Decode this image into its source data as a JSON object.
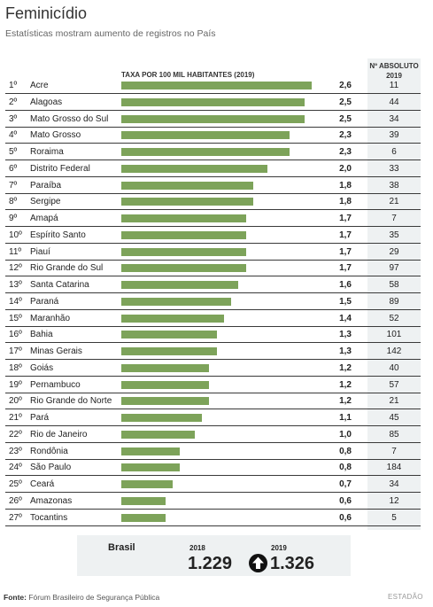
{
  "header": {
    "title": "Feminicídio",
    "subtitle": "Estatísticas mostram aumento de registros no País"
  },
  "columns": {
    "rate_header": "TAXA POR 100 MIL HABITANTES (2019)",
    "abs_header_line1": "Nº ABSOLUTO",
    "abs_header_line2": "2019"
  },
  "colors": {
    "bar": "#7da35a",
    "shade": "#eef1f2"
  },
  "chart_data": {
    "type": "bar",
    "orientation": "horizontal",
    "title": "Feminicídio",
    "subtitle": "Estatísticas mostram aumento de registros no País",
    "value_label": "TAXA POR 100 MIL HABITANTES (2019)",
    "xlim": [
      0,
      2.6
    ],
    "rows": [
      {
        "rank": "1º",
        "state": "Acre",
        "rate": "2,6",
        "rate_value": 2.6,
        "absolute": "11"
      },
      {
        "rank": "2º",
        "state": "Alagoas",
        "rate": "2,5",
        "rate_value": 2.5,
        "absolute": "44"
      },
      {
        "rank": "3º",
        "state": "Mato Grosso do Sul",
        "rate": "2,5",
        "rate_value": 2.5,
        "absolute": "34"
      },
      {
        "rank": "4º",
        "state": "Mato Grosso",
        "rate": "2,3",
        "rate_value": 2.3,
        "absolute": "39"
      },
      {
        "rank": "5º",
        "state": "Roraima",
        "rate": "2,3",
        "rate_value": 2.3,
        "absolute": "6"
      },
      {
        "rank": "6º",
        "state": "Distrito Federal",
        "rate": "2,0",
        "rate_value": 2.0,
        "absolute": "33"
      },
      {
        "rank": "7º",
        "state": "Paraíba",
        "rate": "1,8",
        "rate_value": 1.8,
        "absolute": "38"
      },
      {
        "rank": "8º",
        "state": "Sergipe",
        "rate": "1,8",
        "rate_value": 1.8,
        "absolute": "21"
      },
      {
        "rank": "9º",
        "state": "Amapá",
        "rate": "1,7",
        "rate_value": 1.7,
        "absolute": "7"
      },
      {
        "rank": "10º",
        "state": "Espírito Santo",
        "rate": "1,7",
        "rate_value": 1.7,
        "absolute": "35"
      },
      {
        "rank": "11º",
        "state": "Piauí",
        "rate": "1,7",
        "rate_value": 1.7,
        "absolute": "29"
      },
      {
        "rank": "12º",
        "state": "Rio Grande do Sul",
        "rate": "1,7",
        "rate_value": 1.7,
        "absolute": "97"
      },
      {
        "rank": "13º",
        "state": "Santa Catarina",
        "rate": "1,6",
        "rate_value": 1.6,
        "absolute": "58"
      },
      {
        "rank": "14º",
        "state": "Paraná",
        "rate": "1,5",
        "rate_value": 1.5,
        "absolute": "89"
      },
      {
        "rank": "15º",
        "state": "Maranhão",
        "rate": "1,4",
        "rate_value": 1.4,
        "absolute": "52"
      },
      {
        "rank": "16º",
        "state": "Bahia",
        "rate": "1,3",
        "rate_value": 1.3,
        "absolute": "101"
      },
      {
        "rank": "17º",
        "state": "Minas Gerais",
        "rate": "1,3",
        "rate_value": 1.3,
        "absolute": "142"
      },
      {
        "rank": "18º",
        "state": "Goiás",
        "rate": "1,2",
        "rate_value": 1.2,
        "absolute": "40"
      },
      {
        "rank": "19º",
        "state": "Pernambuco",
        "rate": "1,2",
        "rate_value": 1.2,
        "absolute": "57"
      },
      {
        "rank": "20º",
        "state": "Rio Grande do Norte",
        "rate": "1,2",
        "rate_value": 1.2,
        "absolute": "21"
      },
      {
        "rank": "21º",
        "state": "Pará",
        "rate": "1,1",
        "rate_value": 1.1,
        "absolute": "45"
      },
      {
        "rank": "22º",
        "state": "Rio de Janeiro",
        "rate": "1,0",
        "rate_value": 1.0,
        "absolute": "85"
      },
      {
        "rank": "23º",
        "state": "Rondônia",
        "rate": "0,8",
        "rate_value": 0.8,
        "absolute": "7"
      },
      {
        "rank": "24º",
        "state": "São Paulo",
        "rate": "0,8",
        "rate_value": 0.8,
        "absolute": "184"
      },
      {
        "rank": "25º",
        "state": "Ceará",
        "rate": "0,7",
        "rate_value": 0.7,
        "absolute": "34"
      },
      {
        "rank": "26º",
        "state": "Amazonas",
        "rate": "0,6",
        "rate_value": 0.6,
        "absolute": "12"
      },
      {
        "rank": "27º",
        "state": "Tocantins",
        "rate": "0,6",
        "rate_value": 0.6,
        "absolute": "5"
      }
    ]
  },
  "brasil": {
    "label": "Brasil",
    "year1": "2018",
    "value1": "1.229",
    "year2": "2019",
    "value2": "1.326",
    "trend_icon": "arrow-up-circle-icon"
  },
  "footer": {
    "source_label": "Fonte:",
    "source_text": "Fórum Brasileiro de Segurança Pública",
    "brand": "ESTADÃO"
  }
}
